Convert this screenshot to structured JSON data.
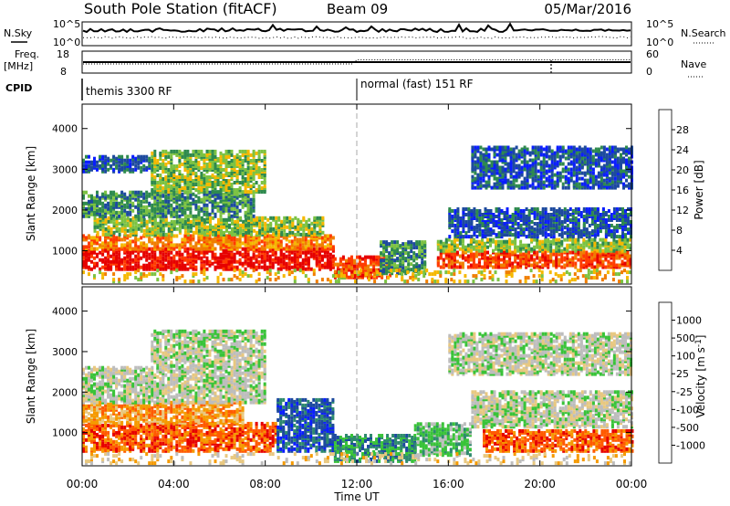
{
  "header": {
    "title": "South Pole Station (fitACF)",
    "beam": "Beam 09",
    "date": "05/Mar/2016"
  },
  "nsky_panel": {
    "left_label": "N.Sky",
    "right_label": "N.Search",
    "ticks": [
      "10^5",
      "10^0"
    ]
  },
  "freq_panel": {
    "left_label_1": "Freq.",
    "left_label_2": "[MHz]",
    "right_label": "Nave",
    "left_ticks": [
      "18",
      "8"
    ],
    "right_ticks": [
      "60",
      "0"
    ]
  },
  "cpid_panel": {
    "label": "CPID",
    "segments": [
      {
        "text": "themis 3300 RF",
        "start": "00:00"
      },
      {
        "text": "normal (fast) 151 RF",
        "start": "12:00"
      }
    ]
  },
  "colors": {
    "power": [
      "#0b1eff",
      "#1d4a9e",
      "#2e8a4e",
      "#7cc242",
      "#f5b800",
      "#f07e00",
      "#ff3b00",
      "#e60000"
    ],
    "velocity": [
      "#e60000",
      "#ff5a00",
      "#f59a00",
      "#e8c880",
      "#bdbdbd",
      "#39c339",
      "#2e8a6e",
      "#1d4a9e",
      "#0b1eff"
    ]
  },
  "chart_data": [
    {
      "type": "heatmap",
      "name": "power",
      "ylabel": "Slant Range [km]",
      "yticks": [
        "1000",
        "2000",
        "3000",
        "4000"
      ],
      "ylim": [
        180,
        4600
      ],
      "xticks": [
        "00:00",
        "04:00",
        "08:00",
        "12:00",
        "16:00",
        "20:00",
        "00:00"
      ],
      "colorbar": {
        "label": "Power [dB]",
        "ticks": [
          "4",
          "8",
          "12",
          "16",
          "20",
          "24",
          "28"
        ],
        "range": [
          0,
          32
        ]
      },
      "bands": [
        {
          "t0": 0.0,
          "t1": 11.0,
          "r0": 500,
          "r1": 1000,
          "level": 7
        },
        {
          "t0": 0.0,
          "t1": 11.0,
          "r0": 1000,
          "r1": 1350,
          "level": 5
        },
        {
          "t0": 0.5,
          "t1": 10.5,
          "r0": 1350,
          "r1": 1800,
          "level": 3
        },
        {
          "t0": 0.0,
          "t1": 7.5,
          "r0": 1800,
          "r1": 2400,
          "level": 2
        },
        {
          "t0": 3.0,
          "t1": 8.0,
          "r0": 2400,
          "r1": 3400,
          "level": 3
        },
        {
          "t0": 0.0,
          "t1": 3.0,
          "r0": 2900,
          "r1": 3300,
          "level": 1
        },
        {
          "t0": 11.0,
          "t1": 13.5,
          "r0": 300,
          "r1": 800,
          "level": 6
        },
        {
          "t0": 13.0,
          "t1": 15.0,
          "r0": 400,
          "r1": 1200,
          "level": 2
        },
        {
          "t0": 15.5,
          "t1": 24.0,
          "r0": 550,
          "r1": 950,
          "level": 6
        },
        {
          "t0": 15.5,
          "t1": 24.0,
          "r0": 950,
          "r1": 1250,
          "level": 3
        },
        {
          "t0": 16.0,
          "t1": 24.0,
          "r0": 1300,
          "r1": 2000,
          "level": 1
        },
        {
          "t0": 17.0,
          "t1": 24.0,
          "r0": 2500,
          "r1": 3500,
          "level": 1
        },
        {
          "t0": 0.0,
          "t1": 24.0,
          "r0": 200,
          "r1": 500,
          "level": 4
        }
      ]
    },
    {
      "type": "heatmap",
      "name": "velocity",
      "ylabel": "Slant Range [km]",
      "yticks": [
        "1000",
        "2000",
        "3000",
        "4000"
      ],
      "ylim": [
        180,
        4600
      ],
      "xticks": [
        "00:00",
        "04:00",
        "08:00",
        "12:00",
        "16:00",
        "20:00",
        "00:00"
      ],
      "xlabel": "Time UT",
      "colorbar": {
        "label": "Velocity [m s^-1]",
        "ticks": [
          "1000",
          "500",
          "100",
          "25",
          "-25",
          "-100",
          "-500",
          "-1000"
        ]
      },
      "bands": [
        {
          "t0": 0.0,
          "t1": 8.5,
          "r0": 500,
          "r1": 1200,
          "level": 1
        },
        {
          "t0": 0.0,
          "t1": 7.0,
          "r0": 1200,
          "r1": 1700,
          "level": 2
        },
        {
          "t0": 8.5,
          "t1": 11.0,
          "r0": 500,
          "r1": 1800,
          "level": 7
        },
        {
          "t0": 0.0,
          "t1": 8.0,
          "r0": 1700,
          "r1": 2600,
          "level": 4
        },
        {
          "t0": 3.0,
          "t1": 8.0,
          "r0": 2600,
          "r1": 3500,
          "level": 4
        },
        {
          "t0": 11.0,
          "t1": 14.5,
          "r0": 250,
          "r1": 900,
          "level": 6
        },
        {
          "t0": 14.5,
          "t1": 17.0,
          "r0": 400,
          "r1": 1200,
          "level": 5
        },
        {
          "t0": 17.5,
          "t1": 24.0,
          "r0": 500,
          "r1": 1000,
          "level": 1
        },
        {
          "t0": 17.0,
          "t1": 24.0,
          "r0": 1100,
          "r1": 2000,
          "level": 4
        },
        {
          "t0": 16.0,
          "t1": 24.0,
          "r0": 2400,
          "r1": 3400,
          "level": 4
        },
        {
          "t0": 0.0,
          "t1": 24.0,
          "r0": 200,
          "r1": 450,
          "level": 3
        }
      ]
    }
  ]
}
